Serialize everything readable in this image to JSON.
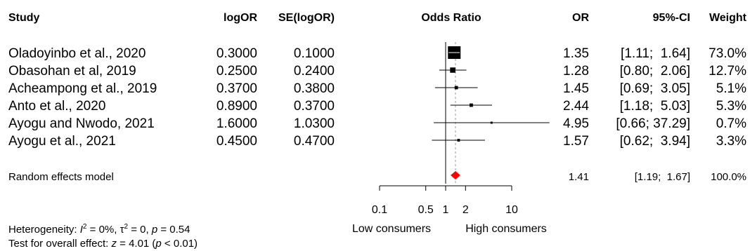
{
  "chart_data": {
    "type": "forest",
    "headers": {
      "study": "Study",
      "logor": "logOR",
      "se": "SE(logOR)",
      "odds_ratio": "Odds Ratio",
      "or": "OR",
      "ci": "95%-CI",
      "weight": "Weight"
    },
    "studies": [
      {
        "study": "Oladoyinbo et al., 2020",
        "logor": "0.3000",
        "se": "0.1000",
        "or": 1.35,
        "lo": 1.11,
        "hi": 1.64,
        "or_text": "1.35",
        "ci_text": "[1.11;  1.64]",
        "weight": 73.0,
        "weight_text": "73.0%"
      },
      {
        "study": "Obasohan et al, 2019",
        "logor": "0.2500",
        "se": "0.2400",
        "or": 1.28,
        "lo": 0.8,
        "hi": 2.06,
        "or_text": "1.28",
        "ci_text": "[0.80;  2.06]",
        "weight": 12.7,
        "weight_text": "12.7%"
      },
      {
        "study": "Acheampong et al., 2019",
        "logor": "0.3700",
        "se": "0.3800",
        "or": 1.45,
        "lo": 0.69,
        "hi": 3.05,
        "or_text": "1.45",
        "ci_text": "[0.69;  3.05]",
        "weight": 5.1,
        "weight_text": "5.1%"
      },
      {
        "study": "Anto et al., 2020",
        "logor": "0.8900",
        "se": "0.3700",
        "or": 2.44,
        "lo": 1.18,
        "hi": 5.03,
        "or_text": "2.44",
        "ci_text": "[1.18;  5.03]",
        "weight": 5.3,
        "weight_text": "5.3%"
      },
      {
        "study": "Ayogu and Nwodo, 2021",
        "logor": "1.6000",
        "se": "1.0300",
        "or": 4.95,
        "lo": 0.66,
        "hi": 37.29,
        "or_text": "4.95",
        "ci_text": "[0.66; 37.29]",
        "weight": 0.7,
        "weight_text": "0.7%"
      },
      {
        "study": "Ayogu et al., 2021",
        "logor": "0.4500",
        "se": "0.4700",
        "or": 1.57,
        "lo": 0.62,
        "hi": 3.94,
        "or_text": "1.57",
        "ci_text": "[0.62;  3.94]",
        "weight": 3.3,
        "weight_text": "3.3%"
      }
    ],
    "pooled": {
      "label": "Random effects model",
      "or": 1.41,
      "lo": 1.19,
      "hi": 1.67,
      "or_text": "1.41",
      "ci_text": "[1.19;  1.67]",
      "weight_text": "100.0%"
    },
    "axis": {
      "scale": "log",
      "ticks": [
        0.1,
        0.5,
        1,
        2,
        10
      ],
      "tick_labels": [
        "0.1",
        "0.5",
        "1",
        "2",
        "10"
      ],
      "xlim": [
        0.1,
        10
      ],
      "left_label": "Low consumers",
      "right_label": "High consumers"
    },
    "heterogeneity": {
      "label": "Heterogeneity: ",
      "i2_sym": "I",
      "i2_sup": "2",
      "i2_val": " = 0%, ",
      "tau_sym": "τ",
      "tau_sup": "2",
      "tau_val": " = 0, ",
      "p_sym": "p",
      "p_val": " = 0.54"
    },
    "overall": {
      "label": "Test for overall effect: ",
      "z_sym": "z",
      "z_val": " = 4.01 (",
      "p_sym": "p",
      "p_val": " < 0.01)"
    },
    "colors": {
      "diamond": "#ff0000",
      "square": "#000000",
      "line": "#000000",
      "ref_line": "#999999"
    }
  }
}
